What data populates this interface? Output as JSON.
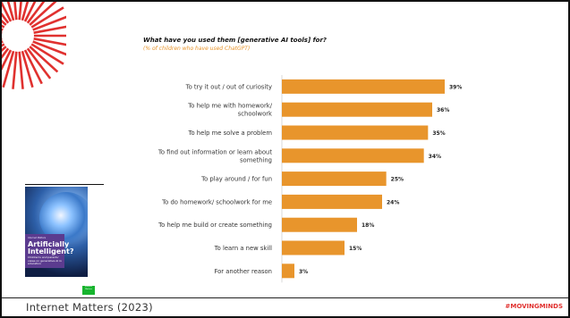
{
  "header": {
    "title": "What have you used them [generative AI tools] for?",
    "subtitle": "(% of children who have used ChatGPT)"
  },
  "colors": {
    "bar": "#e8952c",
    "accent": "#e0312f",
    "badge": "#17b42e"
  },
  "chart_data": {
    "type": "bar",
    "orientation": "horizontal",
    "categories": [
      "To try it out / out of curiosity",
      "To help me with homework/ schoolwork",
      "To help me solve a problem",
      "To find out information or learn about something",
      "To play around / for fun",
      "To do homework/ schoolwork for me",
      "To help me build or create something",
      "To learn a new skill",
      "For another reason"
    ],
    "category_lines": [
      [
        "To try it out / out of curiosity"
      ],
      [
        "To help me with homework/",
        "schoolwork"
      ],
      [
        "To help me solve a problem"
      ],
      [
        "To find out information or learn about",
        "something"
      ],
      [
        "To play around / for fun"
      ],
      [
        "To do homework/ schoolwork for me"
      ],
      [
        "To help me build or create something"
      ],
      [
        "To learn a new skill"
      ],
      [
        "For another reason"
      ]
    ],
    "values": [
      39,
      36,
      35,
      34,
      25,
      24,
      18,
      15,
      3
    ],
    "data_labels": [
      "39%",
      "36%",
      "35%",
      "34%",
      "25%",
      "24%",
      "18%",
      "15%",
      "3%"
    ],
    "unit": "%",
    "xlim": [
      0,
      100
    ],
    "grid": false,
    "title": "What have you used them [generative AI tools] for?",
    "subtitle": "(% of children who have used ChatGPT)"
  },
  "cover": {
    "small_text": "Internet Matters",
    "title": "Artificially Intelligent?",
    "description": "Children's and parents' views on generative AI in education",
    "badge": "Internet Matters"
  },
  "footer": {
    "source": "Internet Matters (2023)",
    "hashtag": "#MOVINGMINDS"
  },
  "logo": {
    "icon": "red-sunburst-logo"
  }
}
